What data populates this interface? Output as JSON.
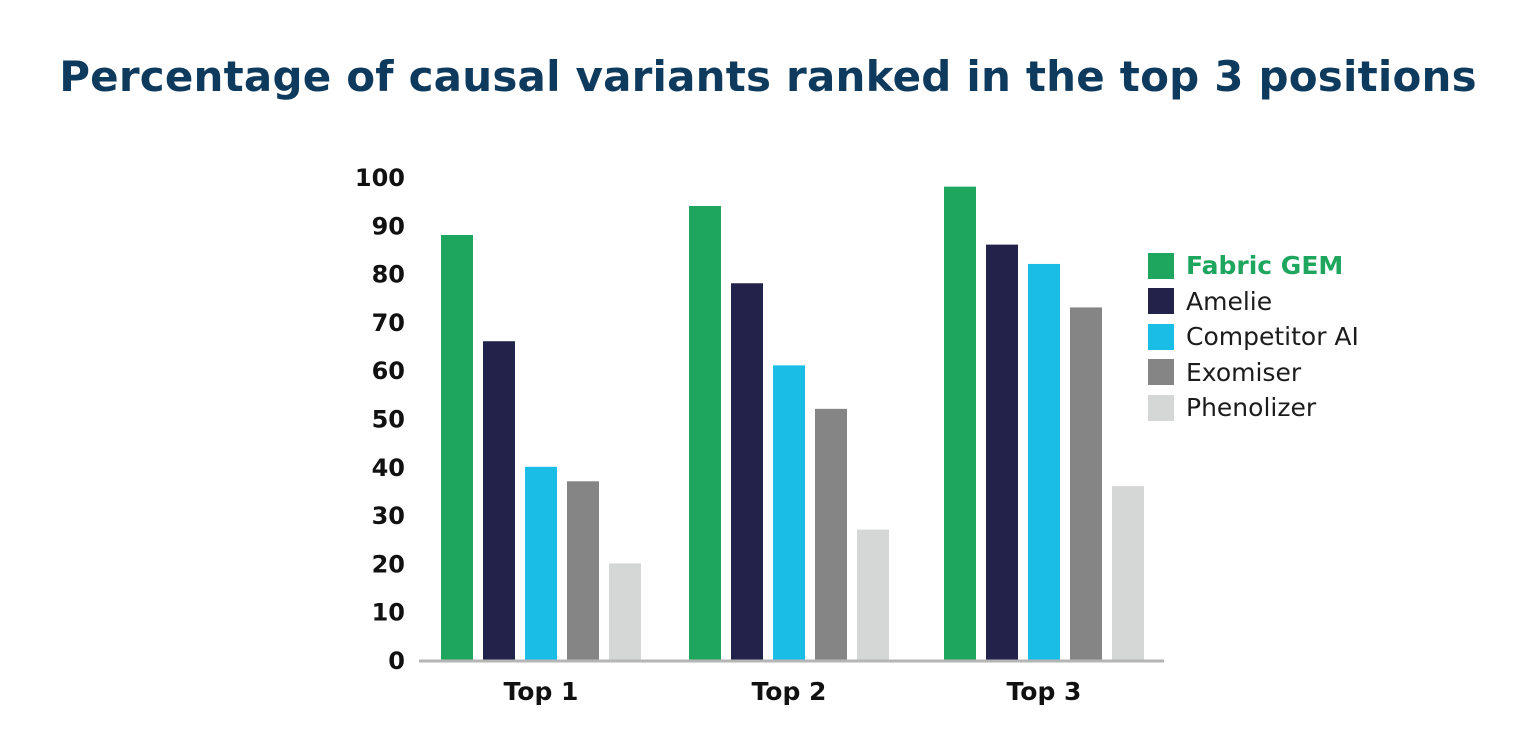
{
  "chart_data": {
    "type": "bar",
    "title": "Percentage of causal variants ranked in the top 3 positions",
    "xlabel": "",
    "ylabel": "",
    "ylim": [
      0,
      100
    ],
    "yticks": [
      0,
      10,
      20,
      30,
      40,
      50,
      60,
      70,
      80,
      90,
      100
    ],
    "categories": [
      "Top 1",
      "Top 2",
      "Top 3"
    ],
    "grid": false,
    "legend_position": "right",
    "series": [
      {
        "name": "Fabric GEM",
        "color": "#1ea55e",
        "values": [
          88,
          94,
          98
        ],
        "highlight": true
      },
      {
        "name": "Amelie",
        "color": "#22224a",
        "values": [
          66,
          78,
          86
        ]
      },
      {
        "name": "Competitor AI",
        "color": "#1abde6",
        "values": [
          40,
          61,
          82
        ]
      },
      {
        "name": "Exomiser",
        "color": "#858585",
        "values": [
          37,
          52,
          73
        ]
      },
      {
        "name": "Phenolizer",
        "color": "#d5d6d6",
        "values": [
          20,
          27,
          36
        ]
      }
    ]
  }
}
